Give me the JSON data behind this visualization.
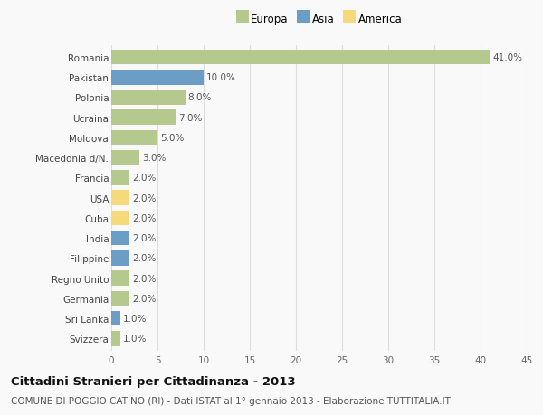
{
  "countries": [
    "Romania",
    "Pakistan",
    "Polonia",
    "Ucraina",
    "Moldova",
    "Macedonia d/N.",
    "Francia",
    "USA",
    "Cuba",
    "India",
    "Filippine",
    "Regno Unito",
    "Germania",
    "Sri Lanka",
    "Svizzera"
  ],
  "values": [
    41.0,
    10.0,
    8.0,
    7.0,
    5.0,
    3.0,
    2.0,
    2.0,
    2.0,
    2.0,
    2.0,
    2.0,
    2.0,
    1.0,
    1.0
  ],
  "continents": [
    "Europa",
    "Asia",
    "Europa",
    "Europa",
    "Europa",
    "Europa",
    "Europa",
    "America",
    "America",
    "Asia",
    "Asia",
    "Europa",
    "Europa",
    "Asia",
    "Europa"
  ],
  "continent_colors": {
    "Europa": "#b5c98e",
    "Asia": "#6a9ec7",
    "America": "#f5d97a"
  },
  "legend_entries": [
    "Europa",
    "Asia",
    "America"
  ],
  "legend_colors": [
    "#b5c98e",
    "#6a9ec7",
    "#f5d97a"
  ],
  "xlim": [
    0,
    45
  ],
  "xticks": [
    0,
    5,
    10,
    15,
    20,
    25,
    30,
    35,
    40,
    45
  ],
  "title": "Cittadini Stranieri per Cittadinanza - 2013",
  "subtitle": "COMUNE DI POGGIO CATINO (RI) - Dati ISTAT al 1° gennaio 2013 - Elaborazione TUTTITALIA.IT",
  "background_color": "#f9f9f9",
  "plot_background": "#ffffff",
  "grid_color": "#dddddd",
  "bar_height": 0.75,
  "label_fontsize": 7.5,
  "value_fontsize": 7.5,
  "title_fontsize": 9.5,
  "subtitle_fontsize": 7.5
}
